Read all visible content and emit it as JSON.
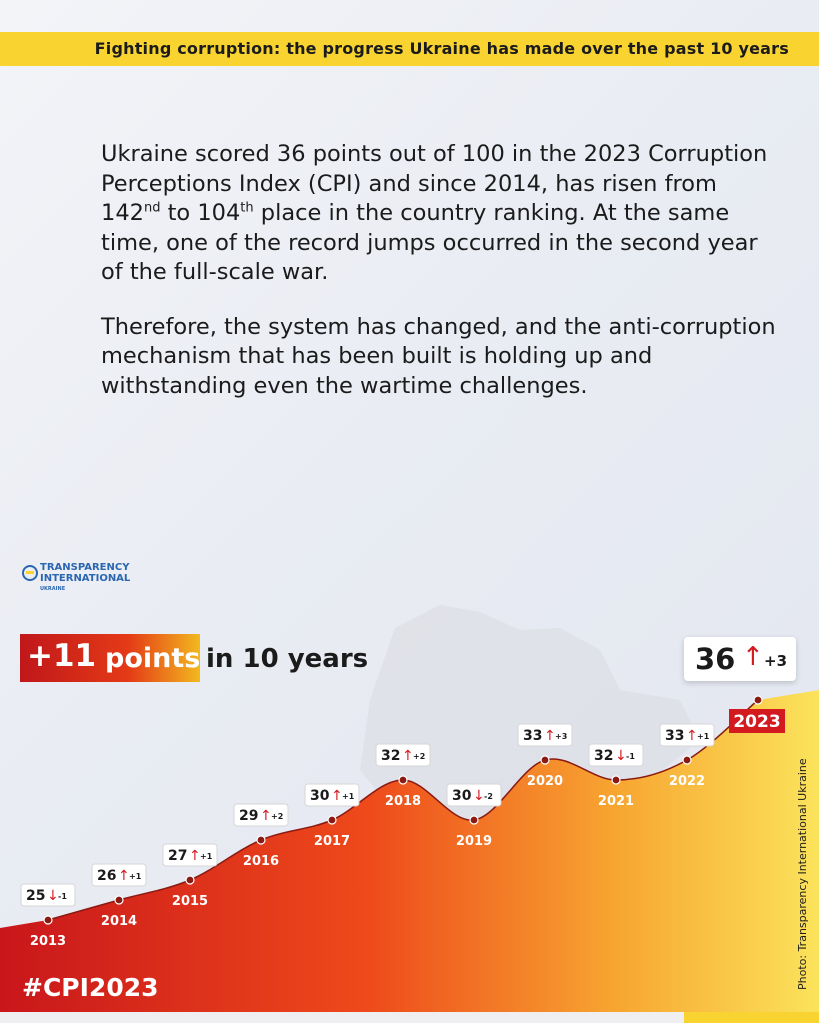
{
  "header": {
    "title": "Fighting corruption: the progress Ukraine has made over the past 10 years"
  },
  "intro": {
    "p1_a": "Ukraine scored 36 points out of 100 in the 2023 Corruption Perceptions Index (CPI) and since 2014, has risen from 142",
    "p1_sup1": "nd",
    "p1_b": " to 104",
    "p1_sup2": "th",
    "p1_c": " place in the country ranking. At the same time, one of the record jumps occurred in the second year of the full-scale war.",
    "p2": "Therefore, the system has changed, and the anti-corruption mechanism that has been built is holding up and withstanding even the wartime challenges."
  },
  "logo": {
    "line1": "TRANSPARENCY",
    "line2": "INTERNATIONAL",
    "line3": "UKRAINE"
  },
  "headline": {
    "num": "+11",
    "word": "points",
    "rest": "in 10 years"
  },
  "chart_data": {
    "type": "line",
    "x": [
      "2013",
      "2014",
      "2015",
      "2016",
      "2017",
      "2018",
      "2019",
      "2020",
      "2021",
      "2022",
      "2023"
    ],
    "values": [
      25,
      26,
      27,
      29,
      30,
      32,
      30,
      33,
      32,
      33,
      36
    ],
    "changes": [
      "-1",
      "+1",
      "+1",
      "+2",
      "+1",
      "+2",
      "-2",
      "+3",
      "-1",
      "+1",
      "+3"
    ],
    "directions": [
      "down",
      "up",
      "up",
      "up",
      "up",
      "up",
      "down",
      "up",
      "down",
      "up",
      "up"
    ],
    "colors": {
      "line": "#8b1a12",
      "fill_start": "#c0171a",
      "fill_mid": "#ef5a18",
      "fill_end": "#fbe35c",
      "up_arrow": "#d31a1f"
    }
  },
  "callout": {
    "value": "36",
    "arrow": "↑",
    "delta": "+3"
  },
  "photo_credit": "Photo: Transparency International Ukraine",
  "hashtag": "#CPI2023"
}
